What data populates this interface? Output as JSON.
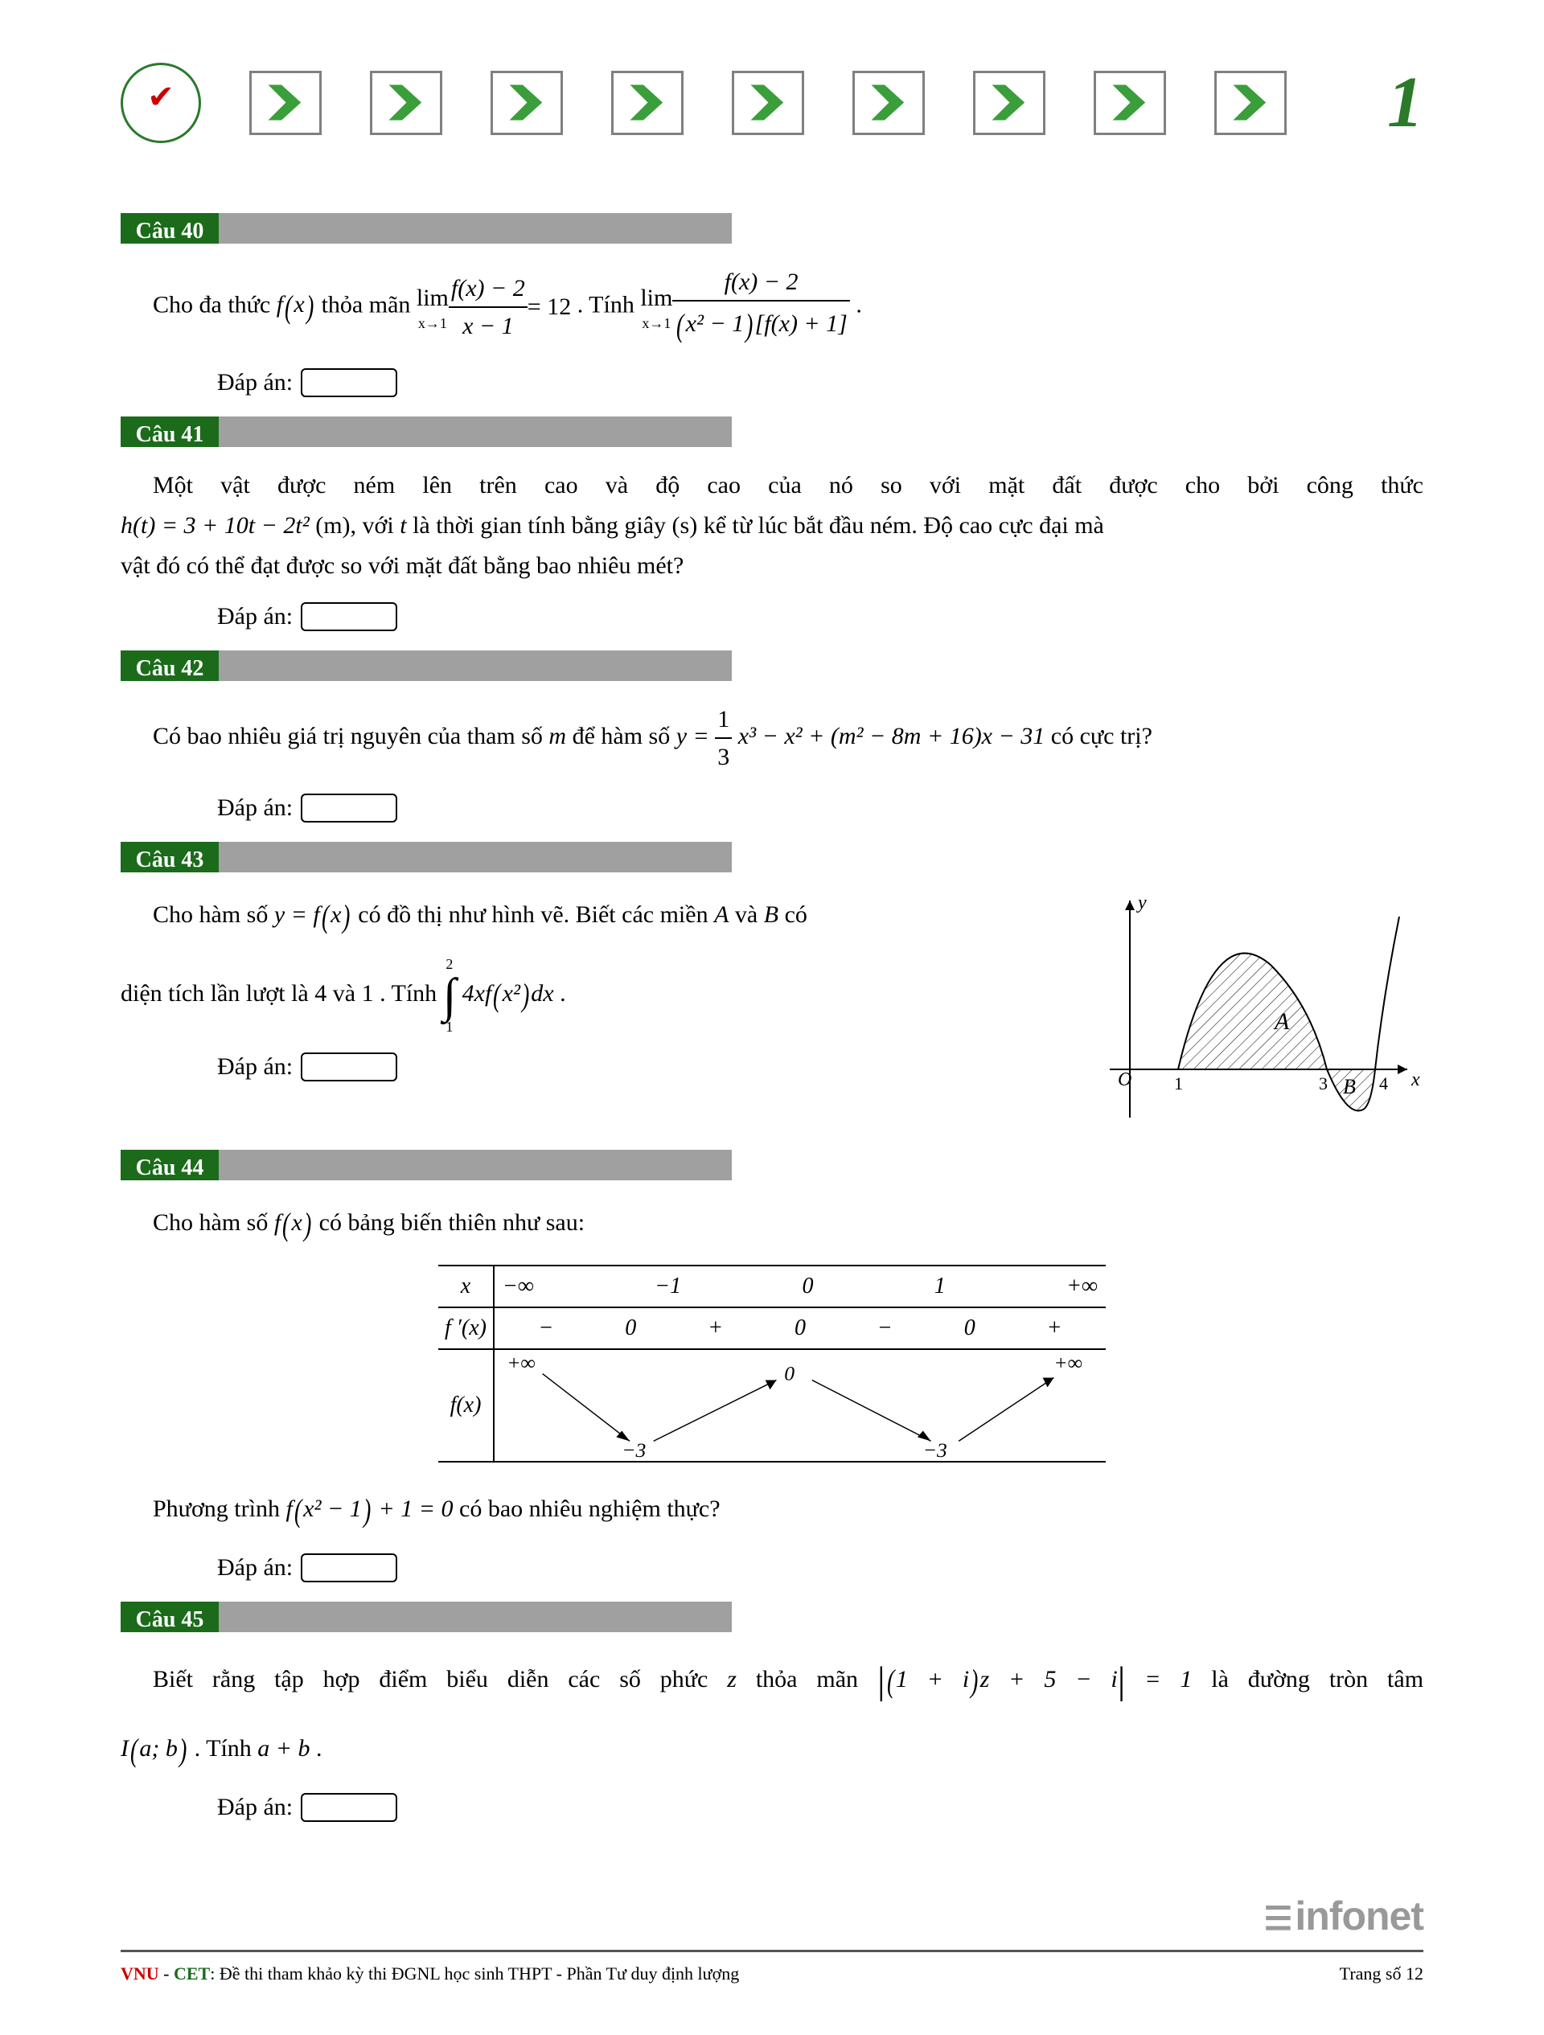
{
  "header": {
    "chevron_count": 9,
    "chevron_fill": "#3a9e3a",
    "chevron_border": "#808080",
    "page_number": "1",
    "page_number_color": "#2a7a2a"
  },
  "questions": {
    "q40": {
      "label": "Câu 40",
      "text_prefix": "Cho đa thức ",
      "fx": "f(x)",
      "text_mid1": " thỏa mãn ",
      "lim1_prefix": "lim",
      "lim1_sub": "x→1",
      "lim1_num": "f(x) − 2",
      "lim1_den": "x − 1",
      "lim1_eq": " = 12",
      "text_mid2": ". Tính ",
      "lim2_sub": "x→1",
      "lim2_num": "f(x) − 2",
      "lim2_den": "(x² − 1)[f(x) + 1]",
      "text_end": ".",
      "answer_label": "Đáp án:"
    },
    "q41": {
      "label": "Câu 41",
      "line1": "Một vật được ném lên trên cao và độ cao của nó so với mặt đất được cho bởi công thức",
      "formula": "h(t) = 3 + 10t − 2t²",
      "unit": " (m), với ",
      "var": "t",
      "line2_mid": " là thời gian tính bằng giây (s) kể từ lúc bắt đầu ném. Độ cao cực đại mà",
      "line3": "vật đó có thể đạt được so với mặt đất bằng bao nhiêu mét?",
      "answer_label": "Đáp án:"
    },
    "q42": {
      "label": "Câu 42",
      "text_prefix": "Có bao nhiêu giá trị nguyên của tham số ",
      "param": "m",
      "text_mid": " để hàm số ",
      "formula_y": "y = ",
      "frac_num": "1",
      "frac_den": "3",
      "formula_rest": "x³ − x² + (m² − 8m + 16)x − 31",
      "text_end": " có cực trị?",
      "answer_label": "Đáp án:"
    },
    "q43": {
      "label": "Câu 43",
      "line1_a": "Cho hàm số ",
      "line1_fx": "y = f(x)",
      "line1_b": " có đồ thị như hình vẽ. Biết các miền ",
      "regionA": "A",
      "line1_c": " và ",
      "regionB": "B",
      "line1_d": " có",
      "line2_a": "diện tích lần lượt là ",
      "area1": "4",
      "line2_b": " và ",
      "area2": "1",
      "line2_c": ". Tính ",
      "int_lower": "1",
      "int_upper": "2",
      "integrand": "4xf(x²)dx",
      "line2_d": ".",
      "answer_label": "Đáp án:",
      "graph": {
        "y_label": "y",
        "x_label": "x",
        "origin": "O",
        "ticks": [
          "1",
          "3",
          "4"
        ],
        "regionA_label": "A",
        "regionB_label": "B",
        "curve_color": "#000000",
        "hatch_color": "#000000",
        "axis_color": "#000000"
      }
    },
    "q44": {
      "label": "Câu 44",
      "line1_a": "Cho hàm số ",
      "line1_fx": "f(x)",
      "line1_b": " có bảng biến thiên như sau:",
      "table": {
        "x_row": {
          "label": "x",
          "values": [
            "−∞",
            "−1",
            "0",
            "1",
            "+∞"
          ]
        },
        "fp_row": {
          "label": "f ′(x)",
          "signs": [
            "−",
            "0",
            "+",
            "0",
            "−",
            "0",
            "+"
          ]
        },
        "fx_row": {
          "label": "f(x)",
          "top_left": "+∞",
          "top_right": "+∞",
          "mid": "0",
          "bottom_left": "−3",
          "bottom_right": "−3"
        }
      },
      "eq_text_a": "Phương trình ",
      "eq_formula": "f(x² − 1) + 1 = 0",
      "eq_text_b": " có bao nhiêu nghiệm thực?",
      "answer_label": "Đáp án:"
    },
    "q45": {
      "label": "Câu 45",
      "line1_a": "Biết rằng tập hợp điểm biểu diễn các số phức ",
      "var_z": "z",
      "line1_b": " thỏa mãn ",
      "modulus": "|(1 + i)z + 5 − i| = 1",
      "line1_c": " là đường tròn tâm",
      "line2_a": "I(a; b)",
      "line2_b": ". Tính ",
      "line2_c": "a + b",
      "line2_d": ".",
      "answer_label": "Đáp án:"
    }
  },
  "footer": {
    "vnu": "VNU",
    "dash": " - ",
    "cet": "CET",
    "desc": ": Đề thi tham khảo kỳ thi ĐGNL học sinh THPT - Phần Tư duy định lượng",
    "page_label": "Trang số 12",
    "watermark": "infonet"
  }
}
